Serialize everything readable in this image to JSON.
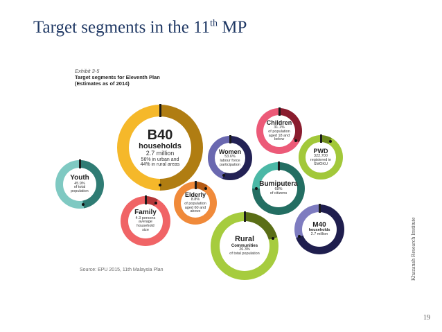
{
  "slide": {
    "title_main": "Target segments in the 11",
    "title_sup": "th",
    "title_end": " MP",
    "page_number": "19",
    "side_credit": "Khazanah Research Institute"
  },
  "exhibit": {
    "label": "Exhibit 3-5",
    "title": "Target segments for Eleventh Plan",
    "subtitle": "(Estimates as of 2014)",
    "source": "Source: EPU 2015, 11th Malaysia Plan"
  },
  "segments": [
    {
      "name": "B40",
      "name2": "households",
      "value": "2.7 million",
      "desc1": "56% in urban and",
      "desc2": "44% in rural areas",
      "color": "#f5b82a",
      "dark": "#b07d12"
    },
    {
      "name": "Youth",
      "value": "45.9%",
      "desc1": "of total",
      "desc2": "population",
      "color": "#7fc9c2",
      "dark": "#2f7c74"
    },
    {
      "name": "Family",
      "value": "4.3 persons",
      "desc1": "average",
      "desc2": "household",
      "desc3": "size",
      "color": "#f06466",
      "dark": "#b33638"
    },
    {
      "name": "Elderly",
      "value": "8.8%",
      "desc1": "of population",
      "desc2": "aged 60 and",
      "desc3": "above",
      "color": "#f08a3a",
      "dark": "#b45a14"
    },
    {
      "name": "Women",
      "value": "53.6%",
      "desc1": "labour force",
      "desc2": "participation",
      "color": "#6a68b0",
      "dark": "#232255"
    },
    {
      "name": "Children",
      "value": "31.1%",
      "desc1": "of population",
      "desc2": "aged 18 and",
      "desc3": "below",
      "color": "#ec5a78",
      "dark": "#8a1c2e"
    },
    {
      "name": "PWD",
      "value": "322,700",
      "desc1": "registered in",
      "desc2": "SMOKU",
      "color": "#a2c83a",
      "dark": "#6d8a1c"
    },
    {
      "name": "Bumiputera",
      "value": "68%",
      "desc1": "of citizens",
      "color": "#4bb8a6",
      "dark": "#236e62"
    },
    {
      "name": "Rural",
      "name2": "Communities",
      "value": "26.3%",
      "desc1": "of total population",
      "color": "#a6cc3e",
      "dark": "#5a6e16"
    },
    {
      "name": "M40",
      "name2": "households",
      "value": "2.7 million",
      "color": "#7e7cc0",
      "dark": "#1f1e4e"
    }
  ]
}
